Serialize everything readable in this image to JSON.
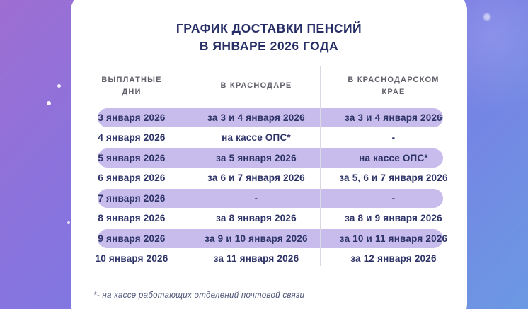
{
  "title": {
    "line1": "ГРАФИК ДОСТАВКИ ПЕНСИЙ",
    "line2": "В ЯНВАРЕ 2026 ГОДА"
  },
  "table": {
    "headers": [
      "ВЫПЛАТНЫЕ ДНИ",
      "В КРАСНОДАРЕ",
      "В КРАСНОДАРСКОМ КРАЕ"
    ],
    "rows": [
      {
        "highlight": true,
        "cells": [
          "3 января 2026",
          "за 3 и 4 января 2026",
          "за 3 и 4 января 2026"
        ]
      },
      {
        "highlight": false,
        "cells": [
          "4 января 2026",
          "на кассе ОПС*",
          "-"
        ]
      },
      {
        "highlight": true,
        "cells": [
          "5 января 2026",
          "за 5 января 2026",
          "на кассе ОПС*"
        ]
      },
      {
        "highlight": false,
        "cells": [
          "6 января 2026",
          "за 6 и 7 января 2026",
          "за 5, 6 и 7 января 2026"
        ]
      },
      {
        "highlight": true,
        "cells": [
          "7 января 2026",
          "-",
          "-"
        ]
      },
      {
        "highlight": false,
        "cells": [
          "8 января 2026",
          "за 8 января 2026",
          "за 8 и 9 января 2026"
        ]
      },
      {
        "highlight": true,
        "cells": [
          "9 января 2026",
          "за 9 и 10 января 2026",
          "за 10 и 11 января 2026"
        ]
      },
      {
        "highlight": false,
        "cells": [
          "10 января 2026",
          "за 11 января 2026",
          "за 12 января 2026"
        ]
      }
    ]
  },
  "footnote": "*- на кассе работающих отделений почтовой связи",
  "colors": {
    "bg_top_left": "#9e6ed2",
    "bg_mid": "#7b79e4",
    "bg_bottom_right": "#6b99e3",
    "card": "#ffffff",
    "title": "#272e66",
    "header_text": "#60606a",
    "cell_text": "#2d3367",
    "pill": "#c7bcec",
    "divider": "#d9d9e2",
    "footnote": "#4c5377"
  }
}
